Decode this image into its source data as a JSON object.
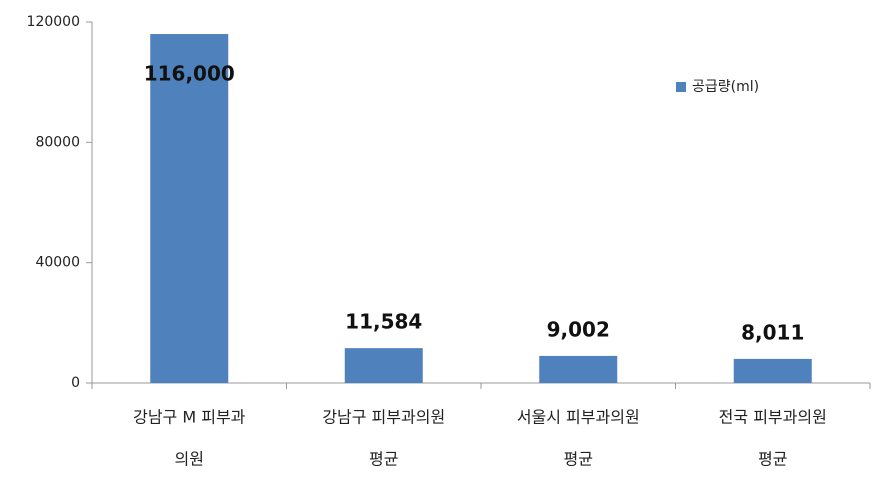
{
  "chart_data": {
    "type": "bar",
    "categories": [
      [
        "강남구 M 피부과",
        "의원"
      ],
      [
        "강남구 피부과의원",
        "평균"
      ],
      [
        "서울시 피부과의원",
        "평균"
      ],
      [
        "전국 피부과의원",
        "평균"
      ]
    ],
    "series": [
      {
        "name": "공급량(ml)",
        "color": "#4f81bd",
        "values": [
          116000,
          11584,
          9002,
          8011
        ],
        "value_labels": [
          "116,000",
          "11,584",
          "9,002",
          "8,011"
        ]
      }
    ],
    "ylim": [
      0,
      120000
    ],
    "yticks": [
      0,
      40000,
      80000,
      120000
    ],
    "legend": "right"
  }
}
